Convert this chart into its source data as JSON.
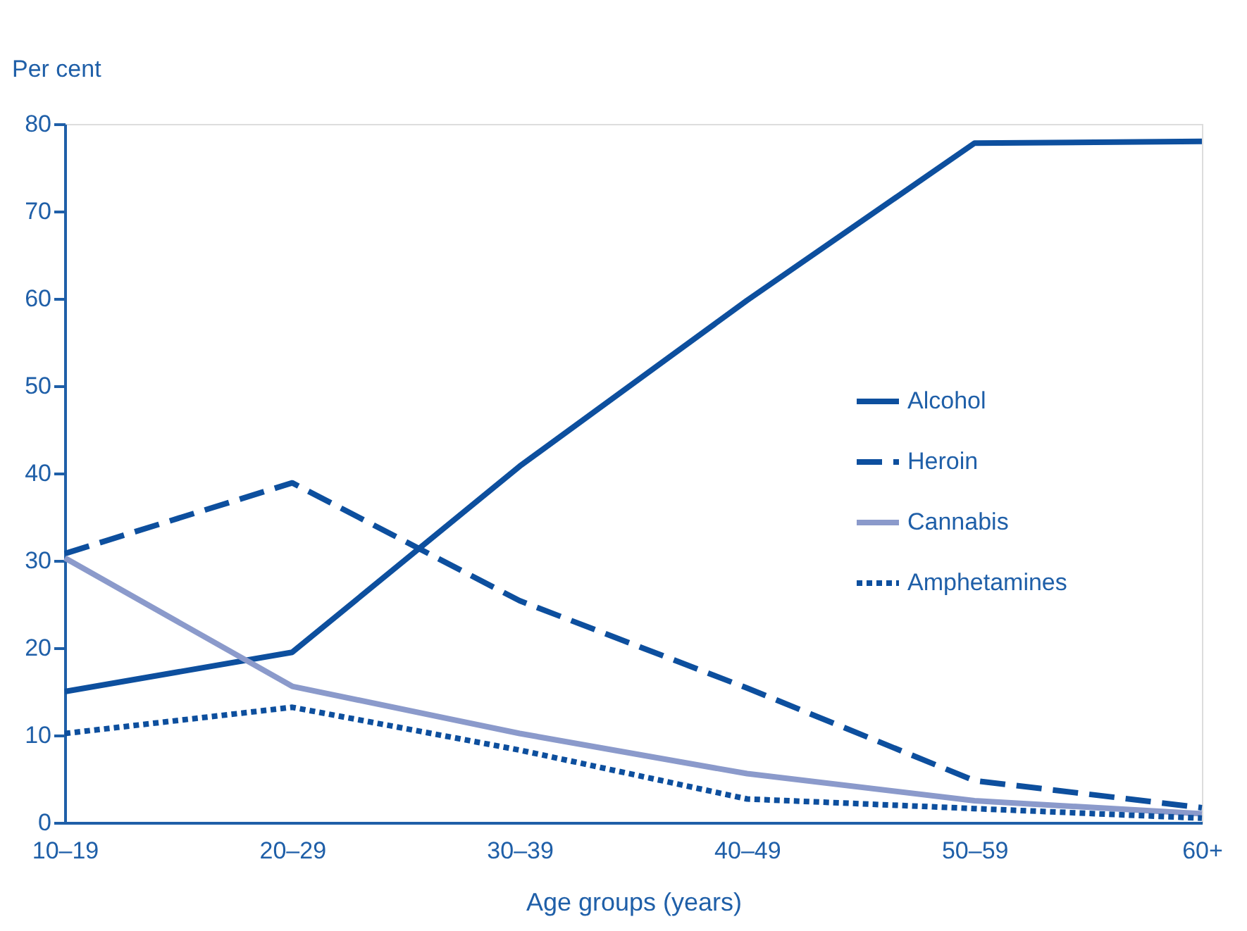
{
  "chart_data": {
    "type": "line",
    "ylabel": "Per cent",
    "xlabel": "Age groups (years)",
    "categories": [
      "10–19",
      "20–29",
      "30–39",
      "40–49",
      "50–59",
      "60+"
    ],
    "series": [
      {
        "name": "Alcohol",
        "color": "#0d4f9e",
        "line_style": "solid",
        "values": [
          15,
          19.5,
          40.8,
          59.8,
          77.8,
          78
        ]
      },
      {
        "name": "Heroin",
        "color": "#0d4f9e",
        "line_style": "dashed",
        "values": [
          30.8,
          38.9,
          25.4,
          15.4,
          4.8,
          1.7
        ]
      },
      {
        "name": "Cannabis",
        "color": "#8b9acb",
        "line_style": "solid",
        "values": [
          30.3,
          15.6,
          10.2,
          5.6,
          2.5,
          1
        ]
      },
      {
        "name": "Amphetamines",
        "color": "#0d4f9e",
        "line_style": "dotted",
        "values": [
          10.2,
          13.2,
          8.3,
          2.7,
          1.6,
          0.5
        ]
      }
    ],
    "ylim": [
      0,
      80
    ],
    "yticks": [
      0,
      10,
      20,
      30,
      40,
      50,
      60,
      70,
      80
    ],
    "grid": false,
    "legend": "right",
    "marker": "none"
  }
}
